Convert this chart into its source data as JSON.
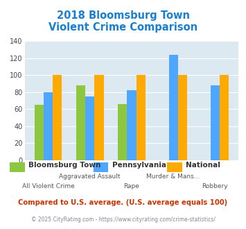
{
  "title": "2018 Bloomsburg Town\nViolent Crime Comparison",
  "title_color": "#1a7fcf",
  "categories": [
    "All Violent Crime",
    "Aggravated Assault",
    "Rape",
    "Murder & Mans...",
    "Robbery"
  ],
  "bloomsburg": [
    65,
    88,
    66,
    0,
    0
  ],
  "pennsylvania": [
    80,
    75,
    82,
    124,
    88
  ],
  "national": [
    100,
    100,
    100,
    100,
    100
  ],
  "bar_colors": {
    "bloomsburg": "#8dc63f",
    "pennsylvania": "#4da6ff",
    "national": "#ffaa00"
  },
  "ylim": [
    0,
    140
  ],
  "yticks": [
    0,
    20,
    40,
    60,
    80,
    100,
    120,
    140
  ],
  "background_color": "#dde9f0",
  "legend_labels": [
    "Bloomsburg Town",
    "Pennsylvania",
    "National"
  ],
  "footnote1": "Compared to U.S. average. (U.S. average equals 100)",
  "footnote2": "© 2025 CityRating.com - https://www.cityrating.com/crime-statistics/",
  "footnote1_color": "#cc3300",
  "footnote2_color": "#888899"
}
